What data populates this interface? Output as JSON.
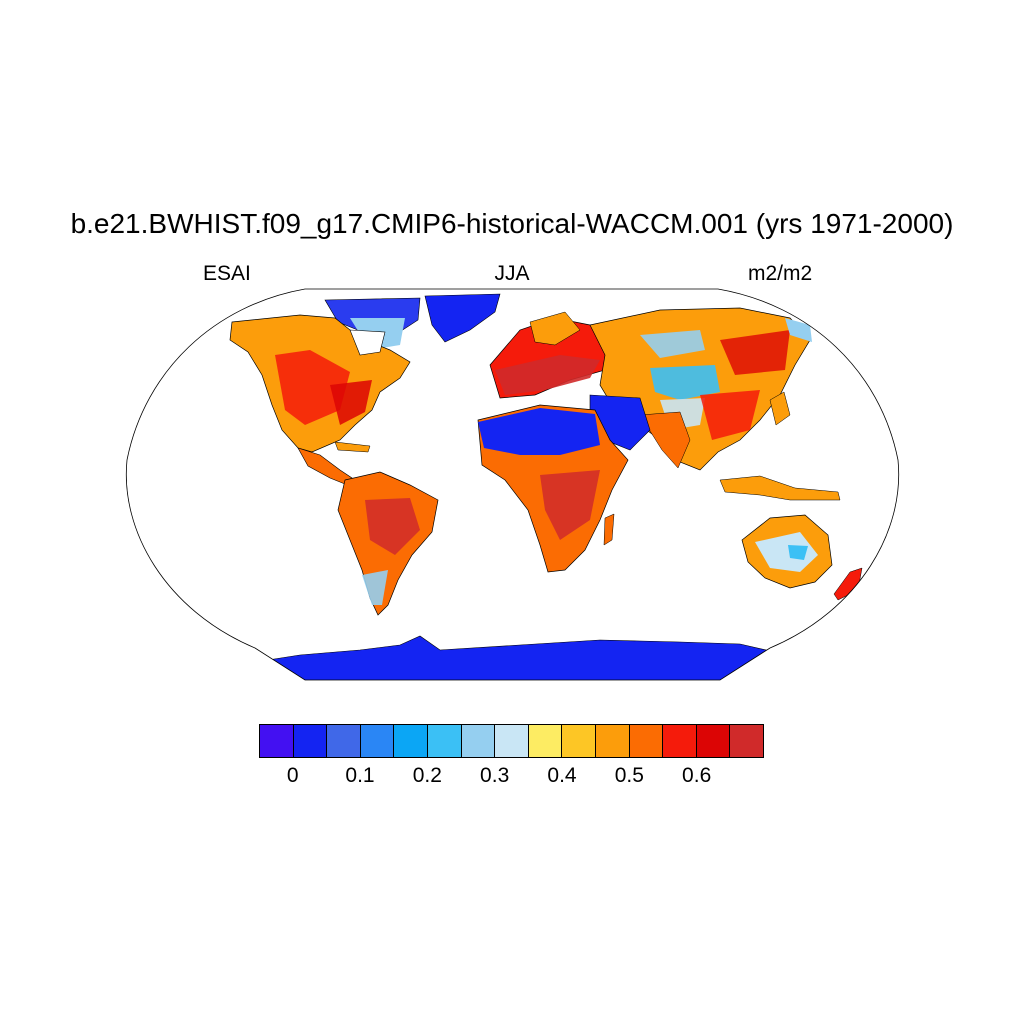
{
  "title": "b.e21.BWHIST.f09_g17.CMIP6-historical-WACCM.001 (yrs 1971-2000)",
  "left_label": "ESAI",
  "center_label": "JJA",
  "right_label": "m2/m2",
  "colorbar": {
    "colors": [
      "#4310f2",
      "#1424f2",
      "#4068e8",
      "#2a86f5",
      "#0ba6f5",
      "#3bc0f5",
      "#95cff0",
      "#c9e6f5",
      "#fdec63",
      "#fdc625",
      "#fc9d0b",
      "#fb6c03",
      "#f51b0b",
      "#dc0505",
      "#d02a2a"
    ],
    "tick_labels": [
      "0",
      "0.1",
      "0.2",
      "0.3",
      "0.4",
      "0.5",
      "0.6"
    ]
  },
  "legend": {
    "colors": {
      "ocean": "#ffffff",
      "ice": "#1424f2",
      "outline": "#000000"
    }
  }
}
